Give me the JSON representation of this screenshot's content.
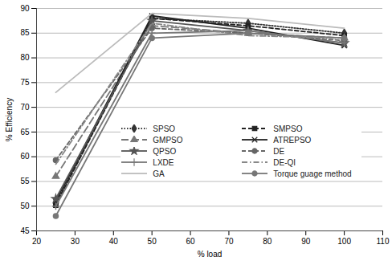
{
  "chart_data": {
    "type": "line",
    "x_label": "% load",
    "y_label": "% Efficiency",
    "x": [
      25,
      50,
      75,
      100
    ],
    "xlim": [
      20,
      110
    ],
    "xticks": [
      20,
      30,
      40,
      50,
      60,
      70,
      80,
      90,
      100,
      110
    ],
    "ylim": [
      45,
      90
    ],
    "yticks": [
      45,
      50,
      55,
      60,
      65,
      70,
      75,
      80,
      85,
      90
    ],
    "grid": "y",
    "legend": "lower right",
    "series": [
      {
        "name": "SPSO",
        "color": "#333333",
        "marker": "diamond",
        "line_style": "dotted",
        "values": [
          50.5,
          88,
          87,
          85
        ]
      },
      {
        "name": "SMPSO",
        "color": "#222222",
        "marker": "square",
        "line_style": "dashed",
        "values": [
          50.2,
          88,
          86.5,
          84.5
        ]
      },
      {
        "name": "GMPSO",
        "color": "#777777",
        "marker": "triangle",
        "line_style": "longdash",
        "values": [
          56,
          86.5,
          85,
          84
        ]
      },
      {
        "name": "ATREPSO",
        "color": "#222222",
        "marker": "times",
        "line_style": "solid",
        "values": [
          51,
          88.5,
          86,
          82.5
        ]
      },
      {
        "name": "QPSO",
        "color": "#555555",
        "marker": "star",
        "line_style": "solid",
        "values": [
          51.5,
          87.5,
          85.5,
          83
        ]
      },
      {
        "name": "DE",
        "color": "#666666",
        "marker": "circle",
        "line_style": "dashed",
        "values": [
          59.3,
          86,
          85,
          83.5
        ]
      },
      {
        "name": "LXDE",
        "color": "#777777",
        "marker": "plus",
        "line_style": "solid",
        "values": [
          50,
          85,
          85.5,
          83
        ]
      },
      {
        "name": "DE-QI",
        "color": "#888888",
        "marker": "none",
        "line_style": "dashdot",
        "values": [
          58.5,
          87,
          84.5,
          84
        ]
      },
      {
        "name": "GA",
        "color": "#bbbbbb",
        "marker": "none",
        "line_style": "solid",
        "values": [
          73,
          89,
          88,
          86
        ]
      },
      {
        "name": "Torque guage method",
        "color": "#777777",
        "marker": "circle",
        "line_style": "solid",
        "values": [
          48,
          84,
          85,
          84
        ]
      }
    ]
  }
}
